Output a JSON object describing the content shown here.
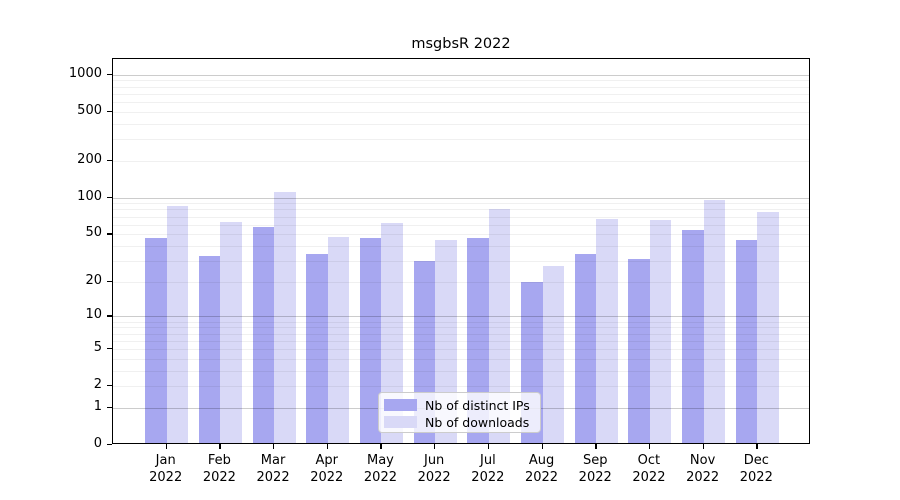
{
  "title": "msgbsR 2022",
  "chart_data": {
    "type": "bar",
    "title": "msgbsR 2022",
    "categories": [
      "Jan",
      "Feb",
      "Mar",
      "Apr",
      "May",
      "Jun",
      "Jul",
      "Aug",
      "Sep",
      "Oct",
      "Nov",
      "Dec"
    ],
    "category_year": "2022",
    "series": [
      {
        "name": "Nb of distinct IPs",
        "color": "#a7a7f0",
        "values": [
          45,
          32,
          55,
          33,
          45,
          29,
          45,
          19,
          33,
          30,
          52,
          43
        ]
      },
      {
        "name": "Nb of downloads",
        "color": "#d9d9f7",
        "values": [
          83,
          61,
          108,
          46,
          60,
          43,
          78,
          26,
          64,
          63,
          92,
          73
        ]
      }
    ],
    "yscale": "log1p",
    "ylim": [
      0,
      1340
    ],
    "yticks": [
      0,
      1,
      2,
      5,
      10,
      20,
      50,
      100,
      200,
      500,
      1000
    ],
    "major_grid_values": [
      1,
      10,
      100,
      1000
    ],
    "minor_grid_values": [
      2,
      3,
      4,
      5,
      6,
      7,
      8,
      9,
      20,
      30,
      40,
      50,
      60,
      70,
      80,
      90,
      200,
      300,
      400,
      500,
      600,
      700,
      800,
      900
    ],
    "grid": true,
    "legend_position": "lower center"
  },
  "legend": {
    "items": [
      {
        "label": "Nb of distinct IPs",
        "color": "#a7a7f0"
      },
      {
        "label": "Nb of downloads",
        "color": "#d9d9f7"
      }
    ]
  },
  "colors": {
    "bar_dark": "#a7a7f0",
    "bar_light": "#d9d9f7",
    "axis": "#000000",
    "major_grid": "#cccccc",
    "minor_grid": "#efefef",
    "legend_border": "#cccccc",
    "background": "#ffffff"
  }
}
